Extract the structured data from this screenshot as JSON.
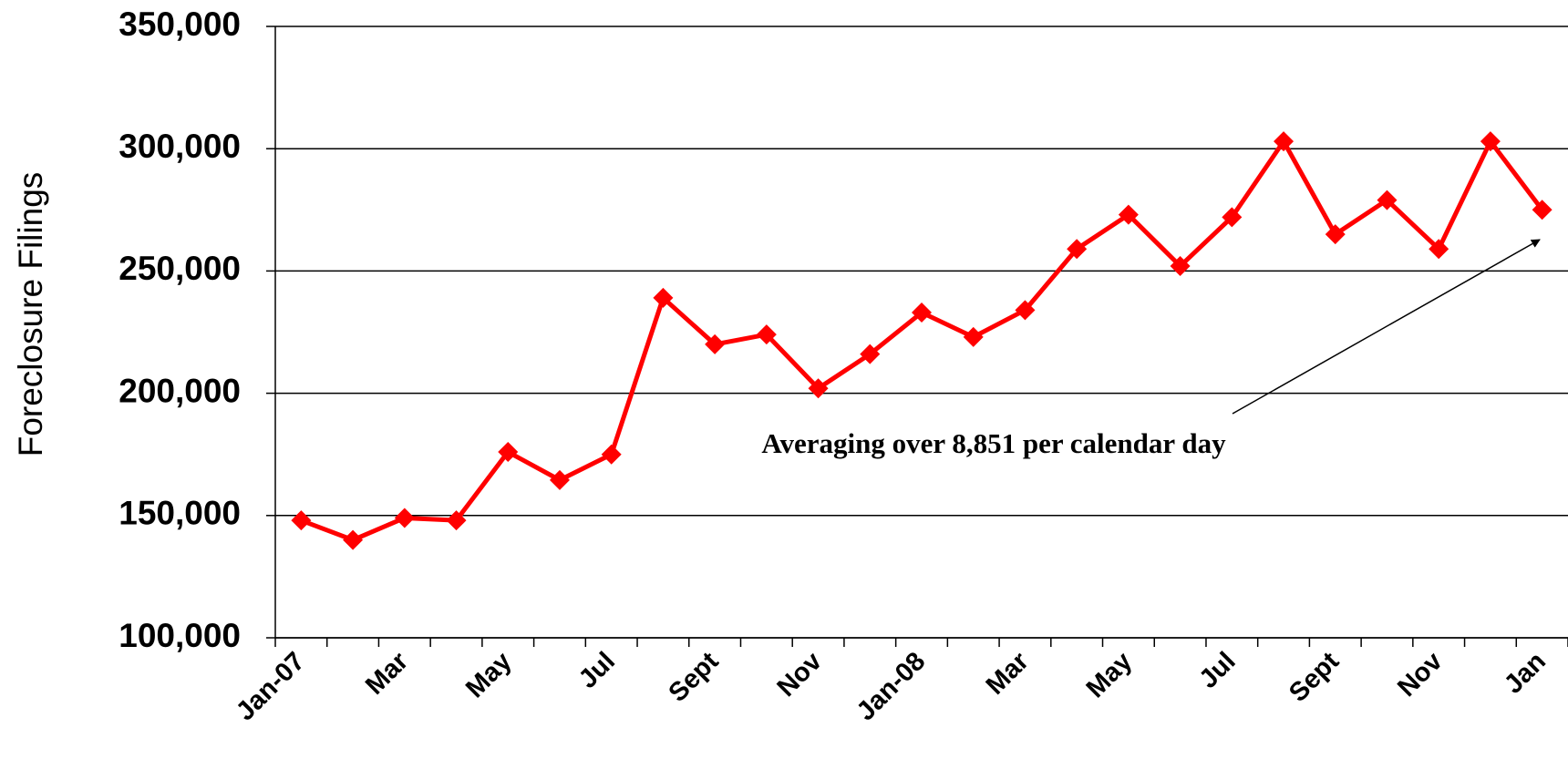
{
  "chart_data": {
    "type": "line",
    "y_label": "Foreclosure Filings",
    "annotation": "Averaging over 8,851 per calendar day",
    "categories": [
      "Jan-07",
      null,
      "Mar",
      null,
      "May",
      null,
      "Jul",
      null,
      "Sept",
      null,
      "Nov",
      null,
      "Jan-08",
      null,
      "Mar",
      null,
      "May",
      null,
      "Jul",
      null,
      "Sept",
      null,
      "Nov",
      null,
      "Jan"
    ],
    "series": [
      {
        "name": "Foreclosure Filings",
        "color": "#ff0000",
        "values": [
          148000,
          140000,
          149000,
          148000,
          176000,
          164500,
          175000,
          239000,
          220000,
          224000,
          202000,
          216000,
          233000,
          223000,
          234000,
          259000,
          273000,
          252000,
          272000,
          303000,
          265000,
          279000,
          259000,
          303000,
          275000
        ]
      }
    ],
    "ylim": [
      100000,
      350000
    ],
    "yticks": [
      {
        "value": 100000,
        "label": "100,000"
      },
      {
        "value": 150000,
        "label": "150,000"
      },
      {
        "value": 200000,
        "label": "200,000"
      },
      {
        "value": 250000,
        "label": "250,000"
      },
      {
        "value": 300000,
        "label": "300,000"
      },
      {
        "value": 350000,
        "label": "350,000"
      }
    ],
    "grid": true
  }
}
